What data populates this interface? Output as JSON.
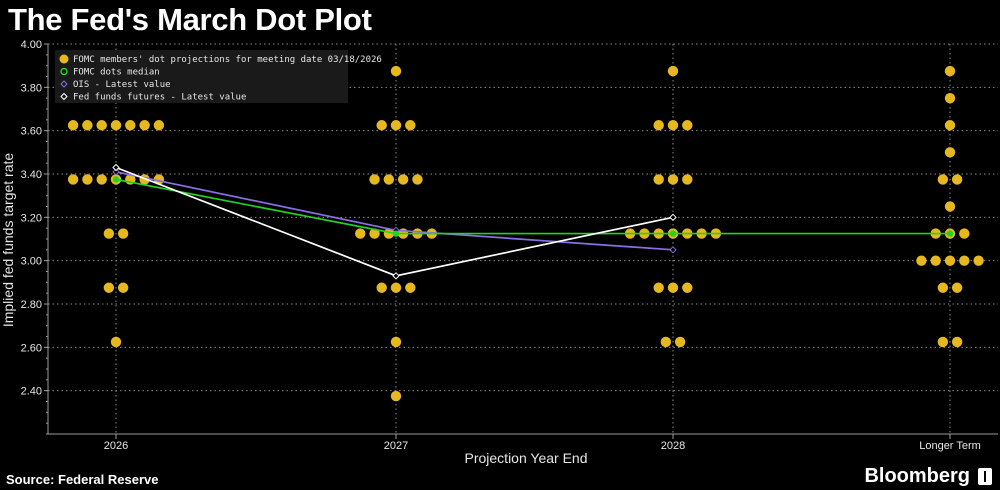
{
  "title": "The Fed's March Dot Plot",
  "source": "Source: Federal Reserve",
  "brand": "Bloomberg",
  "colors": {
    "dots": "#e6b820",
    "median": "#22d422",
    "ois": "#8a6ee6",
    "futures": "#ffffff",
    "grid": "#8c8c8c",
    "axis": "#9a9a9a"
  },
  "chart_data": {
    "type": "scatter",
    "title": "",
    "xlabel": "Projection Year End",
    "ylabel": "Implied fed funds target rate",
    "ylim": [
      2.2,
      4.0
    ],
    "yticks": [
      "2.40",
      "2.60",
      "2.80",
      "3.00",
      "3.20",
      "3.40",
      "3.60",
      "3.80",
      "4.00"
    ],
    "categories": [
      "2026",
      "2027",
      "2028",
      "Longer Term"
    ],
    "grid": true,
    "legend_position": "top-left",
    "legend": [
      {
        "key": "dots",
        "label": "FOMC members' dot projections for meeting date 03/18/2026"
      },
      {
        "key": "median",
        "label": "FOMC dots median"
      },
      {
        "key": "ois",
        "label": "OIS - Latest value"
      },
      {
        "key": "futures",
        "label": "Fed funds futures - Latest value"
      }
    ],
    "dot_projections": [
      {
        "category": "2026",
        "rates": [
          {
            "rate": 3.625,
            "count": 7
          },
          {
            "rate": 3.375,
            "count": 7
          },
          {
            "rate": 3.125,
            "count": 2
          },
          {
            "rate": 2.875,
            "count": 2
          },
          {
            "rate": 2.625,
            "count": 1
          }
        ]
      },
      {
        "category": "2027",
        "rates": [
          {
            "rate": 3.875,
            "count": 1
          },
          {
            "rate": 3.625,
            "count": 3
          },
          {
            "rate": 3.375,
            "count": 4
          },
          {
            "rate": 3.125,
            "count": 6
          },
          {
            "rate": 2.875,
            "count": 3
          },
          {
            "rate": 2.625,
            "count": 1
          },
          {
            "rate": 2.375,
            "count": 1
          }
        ]
      },
      {
        "category": "2028",
        "rates": [
          {
            "rate": 3.875,
            "count": 1
          },
          {
            "rate": 3.625,
            "count": 3
          },
          {
            "rate": 3.375,
            "count": 3
          },
          {
            "rate": 3.125,
            "count": 7
          },
          {
            "rate": 2.875,
            "count": 3
          },
          {
            "rate": 2.625,
            "count": 2
          }
        ]
      },
      {
        "category": "Longer Term",
        "rates": [
          {
            "rate": 3.875,
            "count": 1
          },
          {
            "rate": 3.75,
            "count": 1
          },
          {
            "rate": 3.625,
            "count": 1
          },
          {
            "rate": 3.5,
            "count": 1
          },
          {
            "rate": 3.375,
            "count": 2
          },
          {
            "rate": 3.25,
            "count": 1
          },
          {
            "rate": 3.125,
            "count": 3
          },
          {
            "rate": 3.0,
            "count": 5
          },
          {
            "rate": 2.875,
            "count": 2
          },
          {
            "rate": 2.625,
            "count": 2
          }
        ]
      }
    ],
    "series": [
      {
        "key": "median",
        "values": [
          3.375,
          3.125,
          3.125,
          3.125
        ]
      },
      {
        "key": "ois",
        "values": [
          3.41,
          3.14,
          3.05
        ]
      },
      {
        "key": "futures",
        "values": [
          3.43,
          2.93,
          3.2
        ]
      }
    ]
  }
}
